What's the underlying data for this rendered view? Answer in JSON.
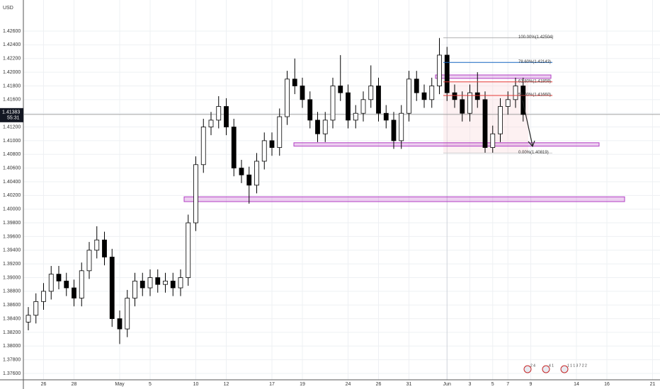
{
  "chart_data": {
    "type": "candlestick",
    "currency": "USD",
    "categories": [
      null,
      null,
      "26",
      null,
      null,
      null,
      "28",
      null,
      null,
      null,
      null,
      null,
      "May",
      null,
      null,
      null,
      "5",
      null,
      null,
      null,
      null,
      null,
      "10",
      null,
      null,
      null,
      "12",
      null,
      null,
      null,
      null,
      null,
      "17",
      null,
      null,
      null,
      "19",
      null,
      null,
      null,
      null,
      null,
      "24",
      null,
      null,
      null,
      "26",
      null,
      null,
      null,
      "31",
      null,
      null,
      null,
      null,
      "Jun",
      null,
      null,
      "3",
      null,
      null,
      "5",
      null,
      "7",
      null,
      null,
      "9",
      null,
      null,
      null,
      null,
      null,
      "14",
      null,
      null,
      null,
      "16",
      null,
      null,
      null,
      null,
      null,
      "21"
    ],
    "open": [
      1.3835,
      1.3845,
      1.3865,
      1.388,
      1.3905,
      1.3895,
      1.3885,
      1.387,
      1.391,
      1.394,
      1.3955,
      1.393,
      1.384,
      1.3825,
      1.387,
      1.3895,
      1.3885,
      1.39,
      1.389,
      1.3895,
      1.3885,
      1.39,
      1.398,
      1.4065,
      1.412,
      1.413,
      1.415,
      1.412,
      1.406,
      1.405,
      1.4035,
      1.407,
      1.41,
      1.409,
      1.4135,
      1.419,
      1.418,
      1.416,
      1.413,
      1.411,
      1.413,
      1.418,
      1.417,
      1.413,
      1.414,
      1.416,
      1.418,
      1.414,
      1.413,
      1.41,
      1.414,
      1.419,
      1.417,
      1.416,
      1.418,
      1.4225,
      1.417,
      1.416,
      1.414,
      1.417,
      1.416,
      1.409,
      1.411,
      1.415,
      1.416,
      1.418,
      null,
      null,
      null,
      null,
      null,
      null,
      null,
      null,
      null,
      null,
      null,
      null,
      null,
      null,
      null,
      null,
      null
    ],
    "high": [
      1.3857,
      1.3877,
      1.3892,
      1.3917,
      1.3917,
      1.3907,
      1.3897,
      1.3922,
      1.3952,
      1.3975,
      1.3967,
      1.3942,
      1.3852,
      1.3882,
      1.3907,
      1.3907,
      1.3912,
      1.3912,
      1.3907,
      1.3907,
      1.3912,
      1.3992,
      1.4077,
      1.4132,
      1.4142,
      1.4165,
      1.4162,
      1.4132,
      1.4072,
      1.4062,
      1.4082,
      1.4112,
      1.4112,
      1.4147,
      1.4202,
      1.422,
      1.4192,
      1.4172,
      1.4142,
      1.4142,
      1.4192,
      1.4225,
      1.4182,
      1.4152,
      1.4172,
      1.421,
      1.4192,
      1.4152,
      1.4142,
      1.4152,
      1.4202,
      1.4202,
      1.4182,
      1.4192,
      1.425,
      1.4237,
      1.4182,
      1.4172,
      1.4182,
      1.42,
      1.4172,
      1.4122,
      1.4162,
      1.4172,
      1.4192,
      1.4192,
      null,
      null,
      null,
      null,
      null,
      null,
      null,
      null,
      null,
      null,
      null,
      null,
      null,
      null,
      null,
      null,
      null
    ],
    "low": [
      1.3823,
      1.3833,
      1.3853,
      1.3868,
      1.3883,
      1.3873,
      1.3858,
      1.3858,
      1.3898,
      1.3928,
      1.3918,
      1.3828,
      1.3803,
      1.3813,
      1.3858,
      1.3873,
      1.3873,
      1.3878,
      1.3878,
      1.3873,
      1.3873,
      1.3888,
      1.3968,
      1.4053,
      1.4108,
      1.4118,
      1.4108,
      1.4048,
      1.4038,
      1.4008,
      1.4023,
      1.4058,
      1.4078,
      1.4078,
      1.4123,
      1.4168,
      1.4148,
      1.4118,
      1.4098,
      1.4098,
      1.4118,
      1.4158,
      1.4118,
      1.4118,
      1.4128,
      1.4148,
      1.4128,
      1.4118,
      1.4088,
      1.4088,
      1.4128,
      1.4158,
      1.4148,
      1.4148,
      1.4168,
      1.4158,
      1.4148,
      1.4128,
      1.4128,
      1.4148,
      1.4082,
      1.4082,
      1.4098,
      1.4138,
      1.4148,
      1.4128,
      null,
      null,
      null,
      null,
      null,
      null,
      null,
      null,
      null,
      null,
      null,
      null,
      null,
      null,
      null,
      null,
      null
    ],
    "close": [
      1.3845,
      1.3865,
      1.388,
      1.3905,
      1.3895,
      1.3885,
      1.387,
      1.391,
      1.394,
      1.3955,
      1.393,
      1.384,
      1.3825,
      1.387,
      1.3895,
      1.3885,
      1.39,
      1.389,
      1.3895,
      1.3885,
      1.39,
      1.398,
      1.4065,
      1.412,
      1.413,
      1.415,
      1.412,
      1.406,
      1.405,
      1.4035,
      1.407,
      1.41,
      1.409,
      1.4135,
      1.419,
      1.418,
      1.416,
      1.413,
      1.411,
      1.413,
      1.418,
      1.417,
      1.413,
      1.414,
      1.416,
      1.418,
      1.414,
      1.413,
      1.41,
      1.414,
      1.419,
      1.417,
      1.416,
      1.418,
      1.4225,
      1.417,
      1.416,
      1.414,
      1.417,
      1.416,
      1.409,
      1.411,
      1.415,
      1.416,
      1.418,
      1.41383,
      null,
      null,
      null,
      null,
      null,
      null,
      null,
      null,
      null,
      null,
      null,
      null,
      null,
      null,
      null,
      null,
      null
    ],
    "up_color": "#ffffff",
    "down_color": "#000000",
    "wick_color": "#000000",
    "ylim": [
      1.37507,
      1.43055
    ],
    "yticks": [
      {
        "value": 1.376,
        "label": "1.37600"
      },
      {
        "value": 1.378,
        "label": "1.37800"
      },
      {
        "value": 1.38,
        "label": "1.38000"
      },
      {
        "value": 1.382,
        "label": "1.38200"
      },
      {
        "value": 1.384,
        "label": "1.38400"
      },
      {
        "value": 1.386,
        "label": "1.38600"
      },
      {
        "value": 1.388,
        "label": "1.38800"
      },
      {
        "value": 1.39,
        "label": "1.39000"
      },
      {
        "value": 1.392,
        "label": "1.39200"
      },
      {
        "value": 1.394,
        "label": "1.39400"
      },
      {
        "value": 1.396,
        "label": "1.39600"
      },
      {
        "value": 1.398,
        "label": "1.39800"
      },
      {
        "value": 1.4,
        "label": "1.40000"
      },
      {
        "value": 1.402,
        "label": "1.40200"
      },
      {
        "value": 1.404,
        "label": "1.40400"
      },
      {
        "value": 1.406,
        "label": "1.40600"
      },
      {
        "value": 1.408,
        "label": "1.40800"
      },
      {
        "value": 1.41,
        "label": "1.41000"
      },
      {
        "value": 1.412,
        "label": "1.41200"
      },
      {
        "value": 1.414,
        "label": "1.41400"
      },
      {
        "value": 1.416,
        "label": "1.41600"
      },
      {
        "value": 1.418,
        "label": "1.41800"
      },
      {
        "value": 1.42,
        "label": "1.42000"
      },
      {
        "value": 1.422,
        "label": "1.42200"
      },
      {
        "value": 1.424,
        "label": "1.42400"
      },
      {
        "value": 1.426,
        "label": "1.42600"
      }
    ],
    "grid": true,
    "last_price": 1.41383,
    "countdown": "55:31",
    "fib_levels": [
      {
        "label": "100.00%(1.42504)",
        "price": 1.42504,
        "color": "#b0b0b0"
      },
      {
        "label": "78.60%(1.42143)",
        "price": 1.42143,
        "color": "#1565c0"
      },
      {
        "label": "61.80%(1.41859)",
        "price": 1.41859,
        "color": "#e53935"
      },
      {
        "label": "50.00%(1.41660)",
        "price": 1.4166,
        "color": "#e53935"
      },
      {
        "label": "0.00%(1.40819)",
        "price": 1.40819,
        "color": "#d0d0d0"
      }
    ],
    "zones": [
      [
        1.4191,
        1.4196
      ],
      [
        1.4092,
        1.4097
      ],
      [
        1.4011,
        1.4018
      ]
    ],
    "zone_color": "#b23fc4",
    "event_labels": [
      "2 4",
      "4 1",
      "1 1 1 3 7 2 2"
    ]
  }
}
